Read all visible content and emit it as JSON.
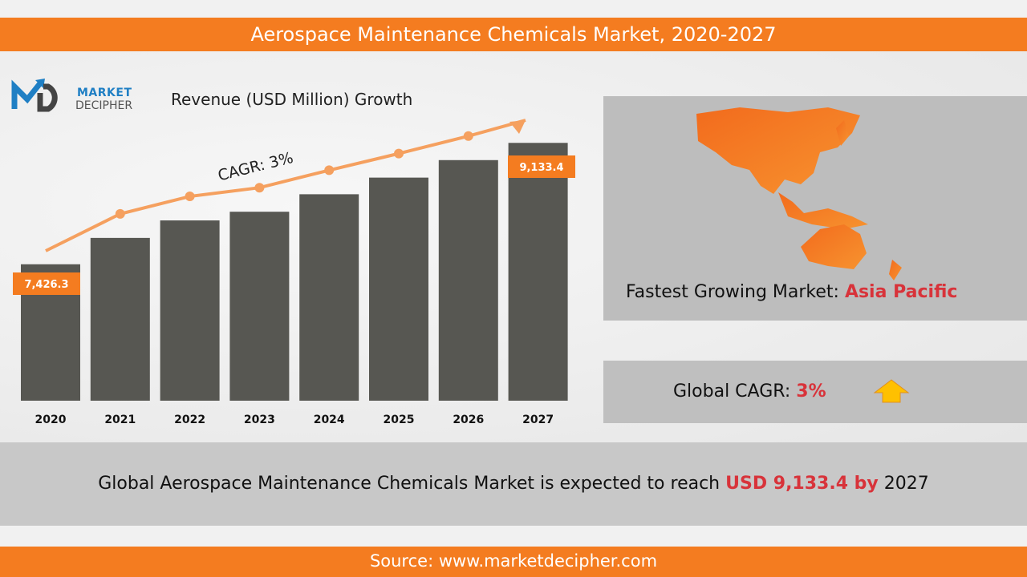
{
  "header": {
    "title": "Aerospace Maintenance Chemicals Market, 2020-2027"
  },
  "logo": {
    "line1": "MARKET",
    "line2": "DECIPHER"
  },
  "chart_data": {
    "type": "bar",
    "title": "Revenue (USD Million) Growth",
    "categories": [
      "2020",
      "2021",
      "2022",
      "2023",
      "2024",
      "2025",
      "2026",
      "2027"
    ],
    "values": [
      7426.3,
      7797,
      8043,
      8165,
      8411,
      8645,
      8891,
      9133.4
    ],
    "data_labels": {
      "2020": "7,426.3",
      "2027": "9,133.4"
    },
    "ylim": [
      5508,
      9700
    ],
    "trend_annotation": "CAGR: 3%",
    "bar_color": "#575752",
    "trend_color": "#f5a05f",
    "label_color": "#f47c20"
  },
  "map": {
    "label": "Fastest Growing Market:",
    "region": "Asia Pacific",
    "highlight_color": "#f47c20"
  },
  "cagr": {
    "label": "Global CAGR:",
    "value": "3%",
    "icon": "up-arrow-icon"
  },
  "banner": {
    "prefix": "Global Aerospace Maintenance Chemicals Market is expected to reach ",
    "value": "USD 9,133.4  by",
    "suffix": " 2027"
  },
  "footer": {
    "source": "Source: www.marketdecipher.com"
  }
}
